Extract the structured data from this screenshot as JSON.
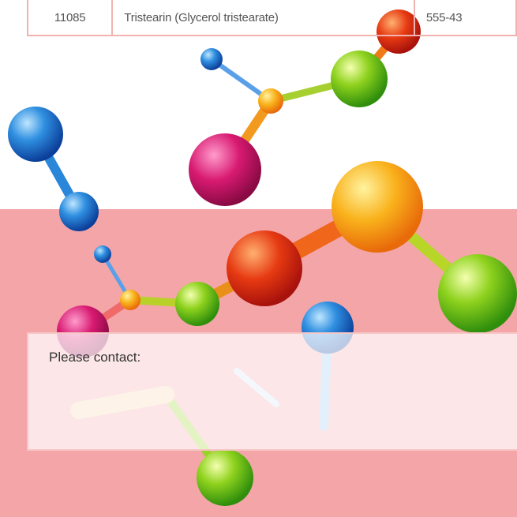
{
  "table": {
    "rows": [
      [
        "11085",
        "Tristearin (Glycerol tristearate)",
        "555-43"
      ]
    ]
  },
  "contact": {
    "label": "Please contact:"
  }
}
